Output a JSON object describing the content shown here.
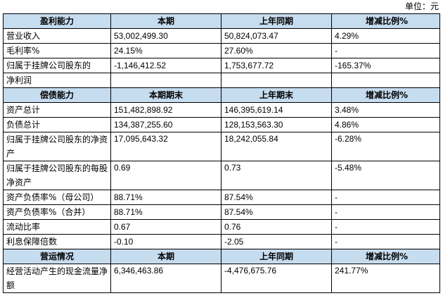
{
  "unit_label": "单位：元",
  "sections": {
    "profit": {
      "header": [
        "盈利能力",
        "本期",
        "上年同期",
        "增减比例%"
      ],
      "rows": [
        [
          "营业收入",
          "53,002,499.30",
          "50,824,073.47",
          "4.29%"
        ],
        [
          "毛利率%",
          "24.15%",
          "27.60%",
          "-"
        ],
        [
          "归属于挂牌公司股东的",
          "-1,146,412.52",
          "1,753,677.72",
          "-165.37%"
        ],
        [
          "净利润",
          "",
          "",
          ""
        ]
      ]
    },
    "solvency": {
      "header": [
        "偿债能力",
        "本期期末",
        "上年期末",
        "增减比例%"
      ],
      "rows": [
        [
          "资产总计",
          "151,482,898.92",
          "146,395,619.14",
          "3.48%"
        ],
        [
          "负债总计",
          "134,387,255.60",
          "128,153,563.30",
          "4.86%"
        ],
        [
          "归属于挂牌公司股东的净资产",
          "17,095,643.32",
          "18,242,055.84",
          "-6.28%"
        ],
        [
          "归属于挂牌公司股东的每股净资产",
          "0.69",
          "0.73",
          "-5.48%"
        ],
        [
          "资产负债率%（母公司）",
          "88.71%",
          "87.54%",
          "-"
        ],
        [
          "资产负债率%（合并）",
          "88.71%",
          "87.54%",
          "-"
        ],
        [
          "流动比率",
          "0.67",
          "0.76",
          "-"
        ],
        [
          "利息保障倍数",
          "-0.10",
          "-2.05",
          "-"
        ]
      ]
    },
    "operations": {
      "header": [
        "营运情况",
        "本期",
        "上年同期",
        "增减比例%"
      ],
      "rows": [
        [
          "经营活动产生的现金流量净额",
          "6,346,463.86",
          "-4,476,675.76",
          "241.77%"
        ]
      ]
    }
  }
}
